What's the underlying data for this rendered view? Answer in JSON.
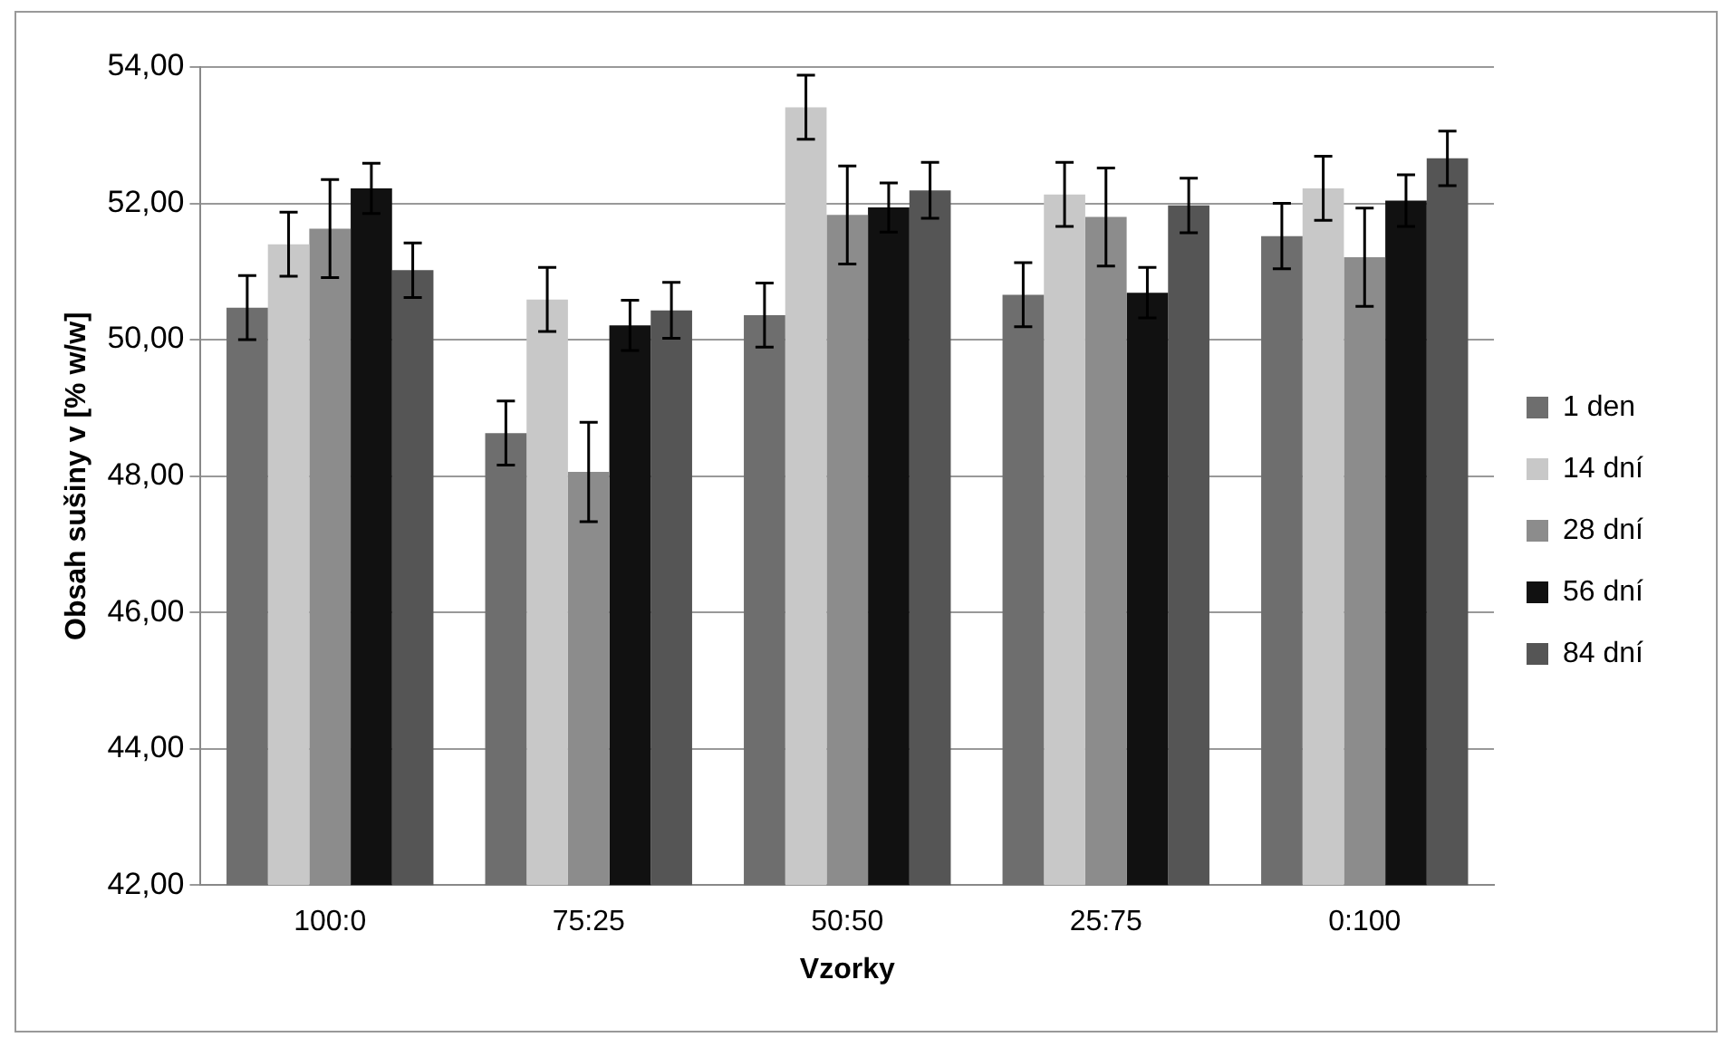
{
  "chart_data": {
    "type": "bar",
    "xlabel": "Vzorky",
    "ylabel": "Obsah sušiny v [% w/w]",
    "categories": [
      "100:0",
      "75:25",
      "50:50",
      "25:75",
      "0:100"
    ],
    "series": [
      {
        "name": "1 den",
        "color": "#6e6e6e",
        "values": [
          50.47,
          48.63,
          50.36,
          50.66,
          51.52
        ],
        "errors": [
          0.47,
          0.47,
          0.47,
          0.47,
          0.48
        ]
      },
      {
        "name": "14 dní",
        "color": "#c8c8c8",
        "values": [
          51.4,
          50.59,
          53.41,
          52.13,
          52.22
        ],
        "errors": [
          0.47,
          0.47,
          0.47,
          0.47,
          0.47
        ]
      },
      {
        "name": "28 dní",
        "color": "#8c8c8c",
        "values": [
          51.63,
          48.06,
          51.83,
          51.8,
          51.21
        ],
        "errors": [
          0.72,
          0.73,
          0.72,
          0.72,
          0.72
        ]
      },
      {
        "name": "56 dní",
        "color": "#111111",
        "values": [
          52.22,
          50.21,
          51.94,
          50.69,
          52.04
        ],
        "errors": [
          0.37,
          0.37,
          0.36,
          0.37,
          0.38
        ]
      },
      {
        "name": "84 dní",
        "color": "#555555",
        "values": [
          51.02,
          50.43,
          52.19,
          51.97,
          52.66
        ],
        "errors": [
          0.4,
          0.41,
          0.41,
          0.4,
          0.4
        ]
      }
    ],
    "ylim": [
      42,
      54
    ],
    "yticks": [
      {
        "value": 42,
        "label": "42,00"
      },
      {
        "value": 44,
        "label": "44,00"
      },
      {
        "value": 46,
        "label": "46,00"
      },
      {
        "value": 48,
        "label": "48,00"
      },
      {
        "value": 50,
        "label": "50,00"
      },
      {
        "value": 52,
        "label": "52,00"
      },
      {
        "value": 54,
        "label": "54,00"
      }
    ],
    "grid": "y",
    "legend": "right"
  }
}
